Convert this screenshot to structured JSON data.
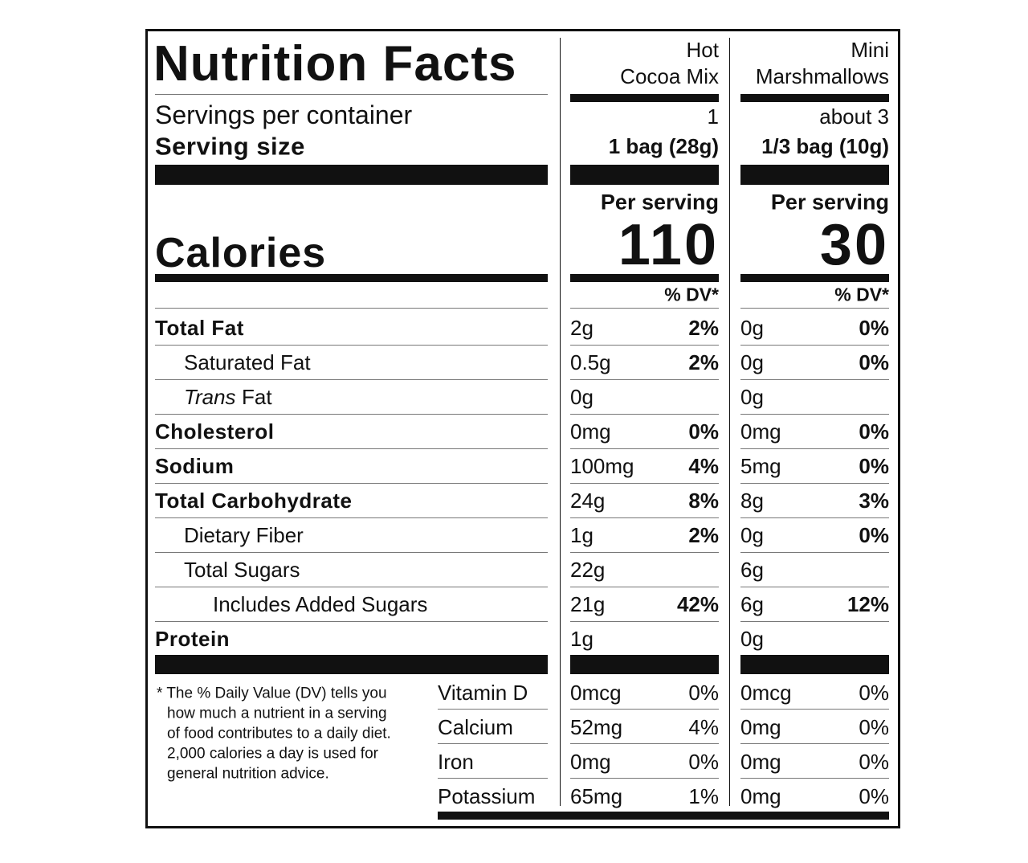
{
  "title": "Nutrition Facts",
  "servings_label": "Servings per container",
  "serving_size_label": "Serving size",
  "calories_label": "Calories",
  "columns": [
    {
      "name": [
        "Hot",
        "Cocoa Mix"
      ],
      "servings": "1",
      "serving_size": "1 bag (28g)",
      "per_serving": "Per serving",
      "calories": "110",
      "dv_header": "% DV*"
    },
    {
      "name": [
        "Mini",
        "Marshmallows"
      ],
      "servings": "about 3",
      "serving_size": "1/3 bag (10g)",
      "per_serving": "Per serving",
      "calories": "30",
      "dv_header": "% DV*"
    }
  ],
  "nutrients": [
    {
      "label": "Total Fat",
      "values": [
        {
          "amount": "2g",
          "dv": "2%"
        },
        {
          "amount": "0g",
          "dv": "0%"
        }
      ]
    },
    {
      "label": "Saturated Fat",
      "values": [
        {
          "amount": "0.5g",
          "dv": "2%"
        },
        {
          "amount": "0g",
          "dv": "0%"
        }
      ]
    },
    {
      "label_italic": "Trans",
      "label": "Fat",
      "values": [
        {
          "amount": "0g"
        },
        {
          "amount": "0g"
        }
      ]
    },
    {
      "label": "Cholesterol",
      "values": [
        {
          "amount": "0mg",
          "dv": "0%"
        },
        {
          "amount": "0mg",
          "dv": "0%"
        }
      ]
    },
    {
      "label": "Sodium",
      "values": [
        {
          "amount": "100mg",
          "dv": "4%"
        },
        {
          "amount": "5mg",
          "dv": "0%"
        }
      ]
    },
    {
      "label": "Total Carbohydrate",
      "values": [
        {
          "amount": "24g",
          "dv": "8%"
        },
        {
          "amount": "8g",
          "dv": "3%"
        }
      ]
    },
    {
      "label": "Dietary Fiber",
      "values": [
        {
          "amount": "1g",
          "dv": "2%"
        },
        {
          "amount": "0g",
          "dv": "0%"
        }
      ]
    },
    {
      "label": "Total Sugars",
      "values": [
        {
          "amount": "22g"
        },
        {
          "amount": "6g"
        }
      ]
    },
    {
      "label": "Includes Added Sugars",
      "values": [
        {
          "amount": "21g",
          "dv": "42%"
        },
        {
          "amount": "6g",
          "dv": "12%"
        }
      ]
    },
    {
      "label": "Protein",
      "values": [
        {
          "amount": "1g"
        },
        {
          "amount": "0g"
        }
      ]
    }
  ],
  "vitamins": [
    {
      "label": "Vitamin D",
      "values": [
        {
          "amount": "0mcg",
          "dv": "0%"
        },
        {
          "amount": "0mcg",
          "dv": "0%"
        }
      ]
    },
    {
      "label": "Calcium",
      "values": [
        {
          "amount": "52mg",
          "dv": "4%"
        },
        {
          "amount": "0mg",
          "dv": "0%"
        }
      ]
    },
    {
      "label": "Iron",
      "values": [
        {
          "amount": "0mg",
          "dv": "0%"
        },
        {
          "amount": "0mg",
          "dv": "0%"
        }
      ]
    },
    {
      "label": "Potassium",
      "values": [
        {
          "amount": "65mg",
          "dv": "1%"
        },
        {
          "amount": "0mg",
          "dv": "0%"
        }
      ]
    }
  ],
  "footnote": [
    "* The % Daily Value (DV) tells you",
    "how much a nutrient in a serving",
    "of food contributes to a daily diet.",
    "2,000 calories a day is used for",
    "general nutrition advice."
  ]
}
